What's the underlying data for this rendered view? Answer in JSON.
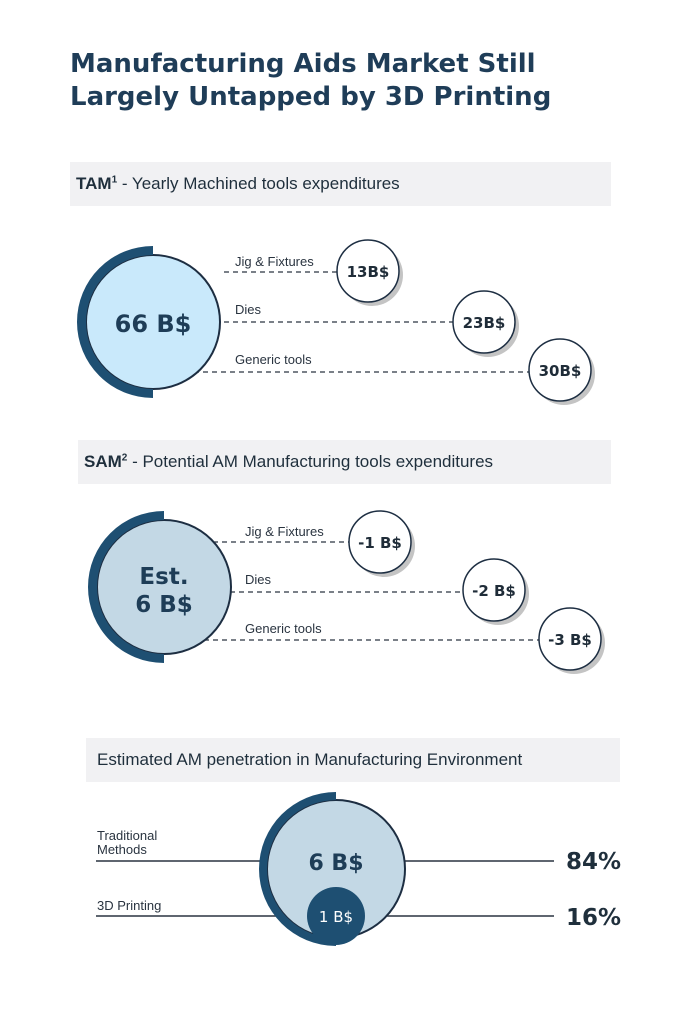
{
  "title": "Manufacturing Aids Market Still Largely Untapped by 3D Printing",
  "tam": {
    "head": "TAM",
    "sup": "1",
    "rest": " - Yearly Machined tools expenditures",
    "center": "66 B$",
    "items": [
      {
        "label": "Jig & Fixtures",
        "value": "13B$"
      },
      {
        "label": "Dies",
        "value": "23B$"
      },
      {
        "label": "Generic tools",
        "value": "30B$"
      }
    ]
  },
  "sam": {
    "head": "SAM",
    "sup": "2",
    "rest": " - Potential AM Manufacturing tools expenditures",
    "center_line1": "Est.",
    "center_line2": "6 B$",
    "items": [
      {
        "label": "Jig & Fixtures",
        "value": "-1 B$"
      },
      {
        "label": "Dies",
        "value": "-2 B$"
      },
      {
        "label": "Generic tools",
        "value": "-3 B$"
      }
    ]
  },
  "penetration": {
    "heading": "Estimated AM penetration in Manufacturing Environment",
    "traditional_line1": "Traditional",
    "traditional_line2": "Methods",
    "printing_label": "3D Printing",
    "big_value": "6 B$",
    "small_value": "1 B$",
    "traditional_pct": "84%",
    "printing_pct": "16%"
  },
  "colors": {
    "dark_blue": "#1e4f72",
    "light_blue": "#c9e9fb",
    "pale_blue": "#c3d8e5",
    "navy": "#1d3d58",
    "band": "#f1f1f3"
  }
}
